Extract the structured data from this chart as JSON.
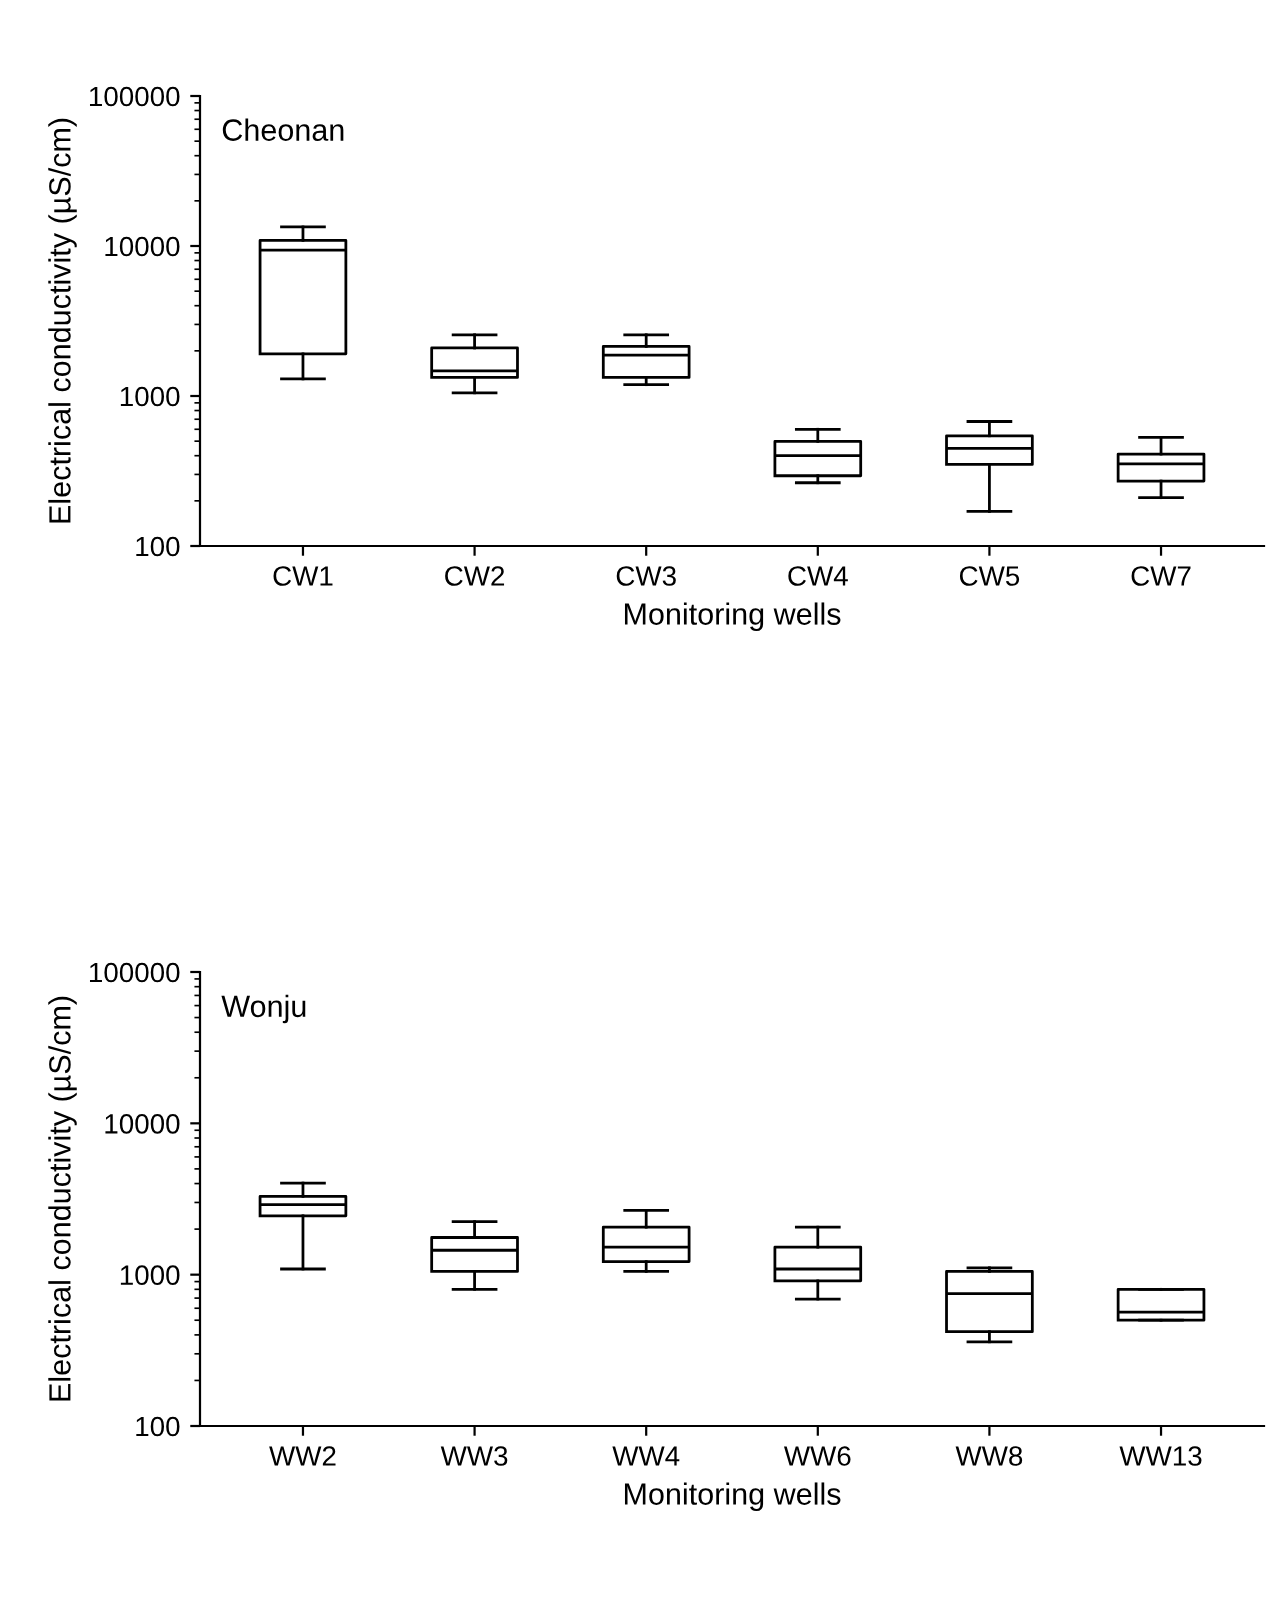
{
  "chart_data": [
    {
      "type": "box",
      "xlabel": "Monitoring wells",
      "ylabel": "Electrical conductivity (µS/cm)",
      "annotations": [
        "Cheonan"
      ],
      "log": "y",
      "ylim": [
        100,
        100000
      ],
      "yticks": [
        100,
        1000,
        10000,
        100000
      ],
      "grid": false,
      "legend": false,
      "categories": [
        "CW1",
        "CW2",
        "CW3",
        "CW4",
        "CW5",
        "CW7"
      ],
      "boxes": [
        {
          "low": 1300,
          "q1": 1910,
          "median": 9400,
          "q3": 10900,
          "high": 13400
        },
        {
          "low": 1050,
          "q1": 1330,
          "median": 1470,
          "q3": 2090,
          "high": 2560
        },
        {
          "low": 1190,
          "q1": 1330,
          "median": 1870,
          "q3": 2140,
          "high": 2560
        },
        {
          "low": 264,
          "q1": 294,
          "median": 400,
          "q3": 498,
          "high": 600
        },
        {
          "low": 170,
          "q1": 350,
          "median": 447,
          "q3": 543,
          "high": 676
        },
        {
          "low": 210,
          "q1": 271,
          "median": 353,
          "q3": 410,
          "high": 530
        }
      ]
    },
    {
      "type": "box",
      "xlabel": "Monitoring wells",
      "ylabel": "Electrical conductivity (µS/cm)",
      "annotations": [
        "Wonju"
      ],
      "log": "y",
      "ylim": [
        100,
        100000
      ],
      "yticks": [
        100,
        1000,
        10000,
        100000
      ],
      "grid": false,
      "legend": false,
      "categories": [
        "WW2",
        "WW3",
        "WW4",
        "WW6",
        "WW8",
        "WW13"
      ],
      "boxes": [
        {
          "low": 1090,
          "q1": 2450,
          "median": 2900,
          "q3": 3290,
          "high": 4030
        },
        {
          "low": 800,
          "q1": 1050,
          "median": 1450,
          "q3": 1760,
          "high": 2240
        },
        {
          "low": 1050,
          "q1": 1220,
          "median": 1520,
          "q3": 2060,
          "high": 2660
        },
        {
          "low": 690,
          "q1": 910,
          "median": 1090,
          "q3": 1520,
          "high": 2060
        },
        {
          "low": 360,
          "q1": 420,
          "median": 750,
          "q3": 1050,
          "high": 1110
        },
        {
          "low": 500,
          "q1": 500,
          "median": 565,
          "q3": 800,
          "high": 800
        }
      ]
    }
  ]
}
